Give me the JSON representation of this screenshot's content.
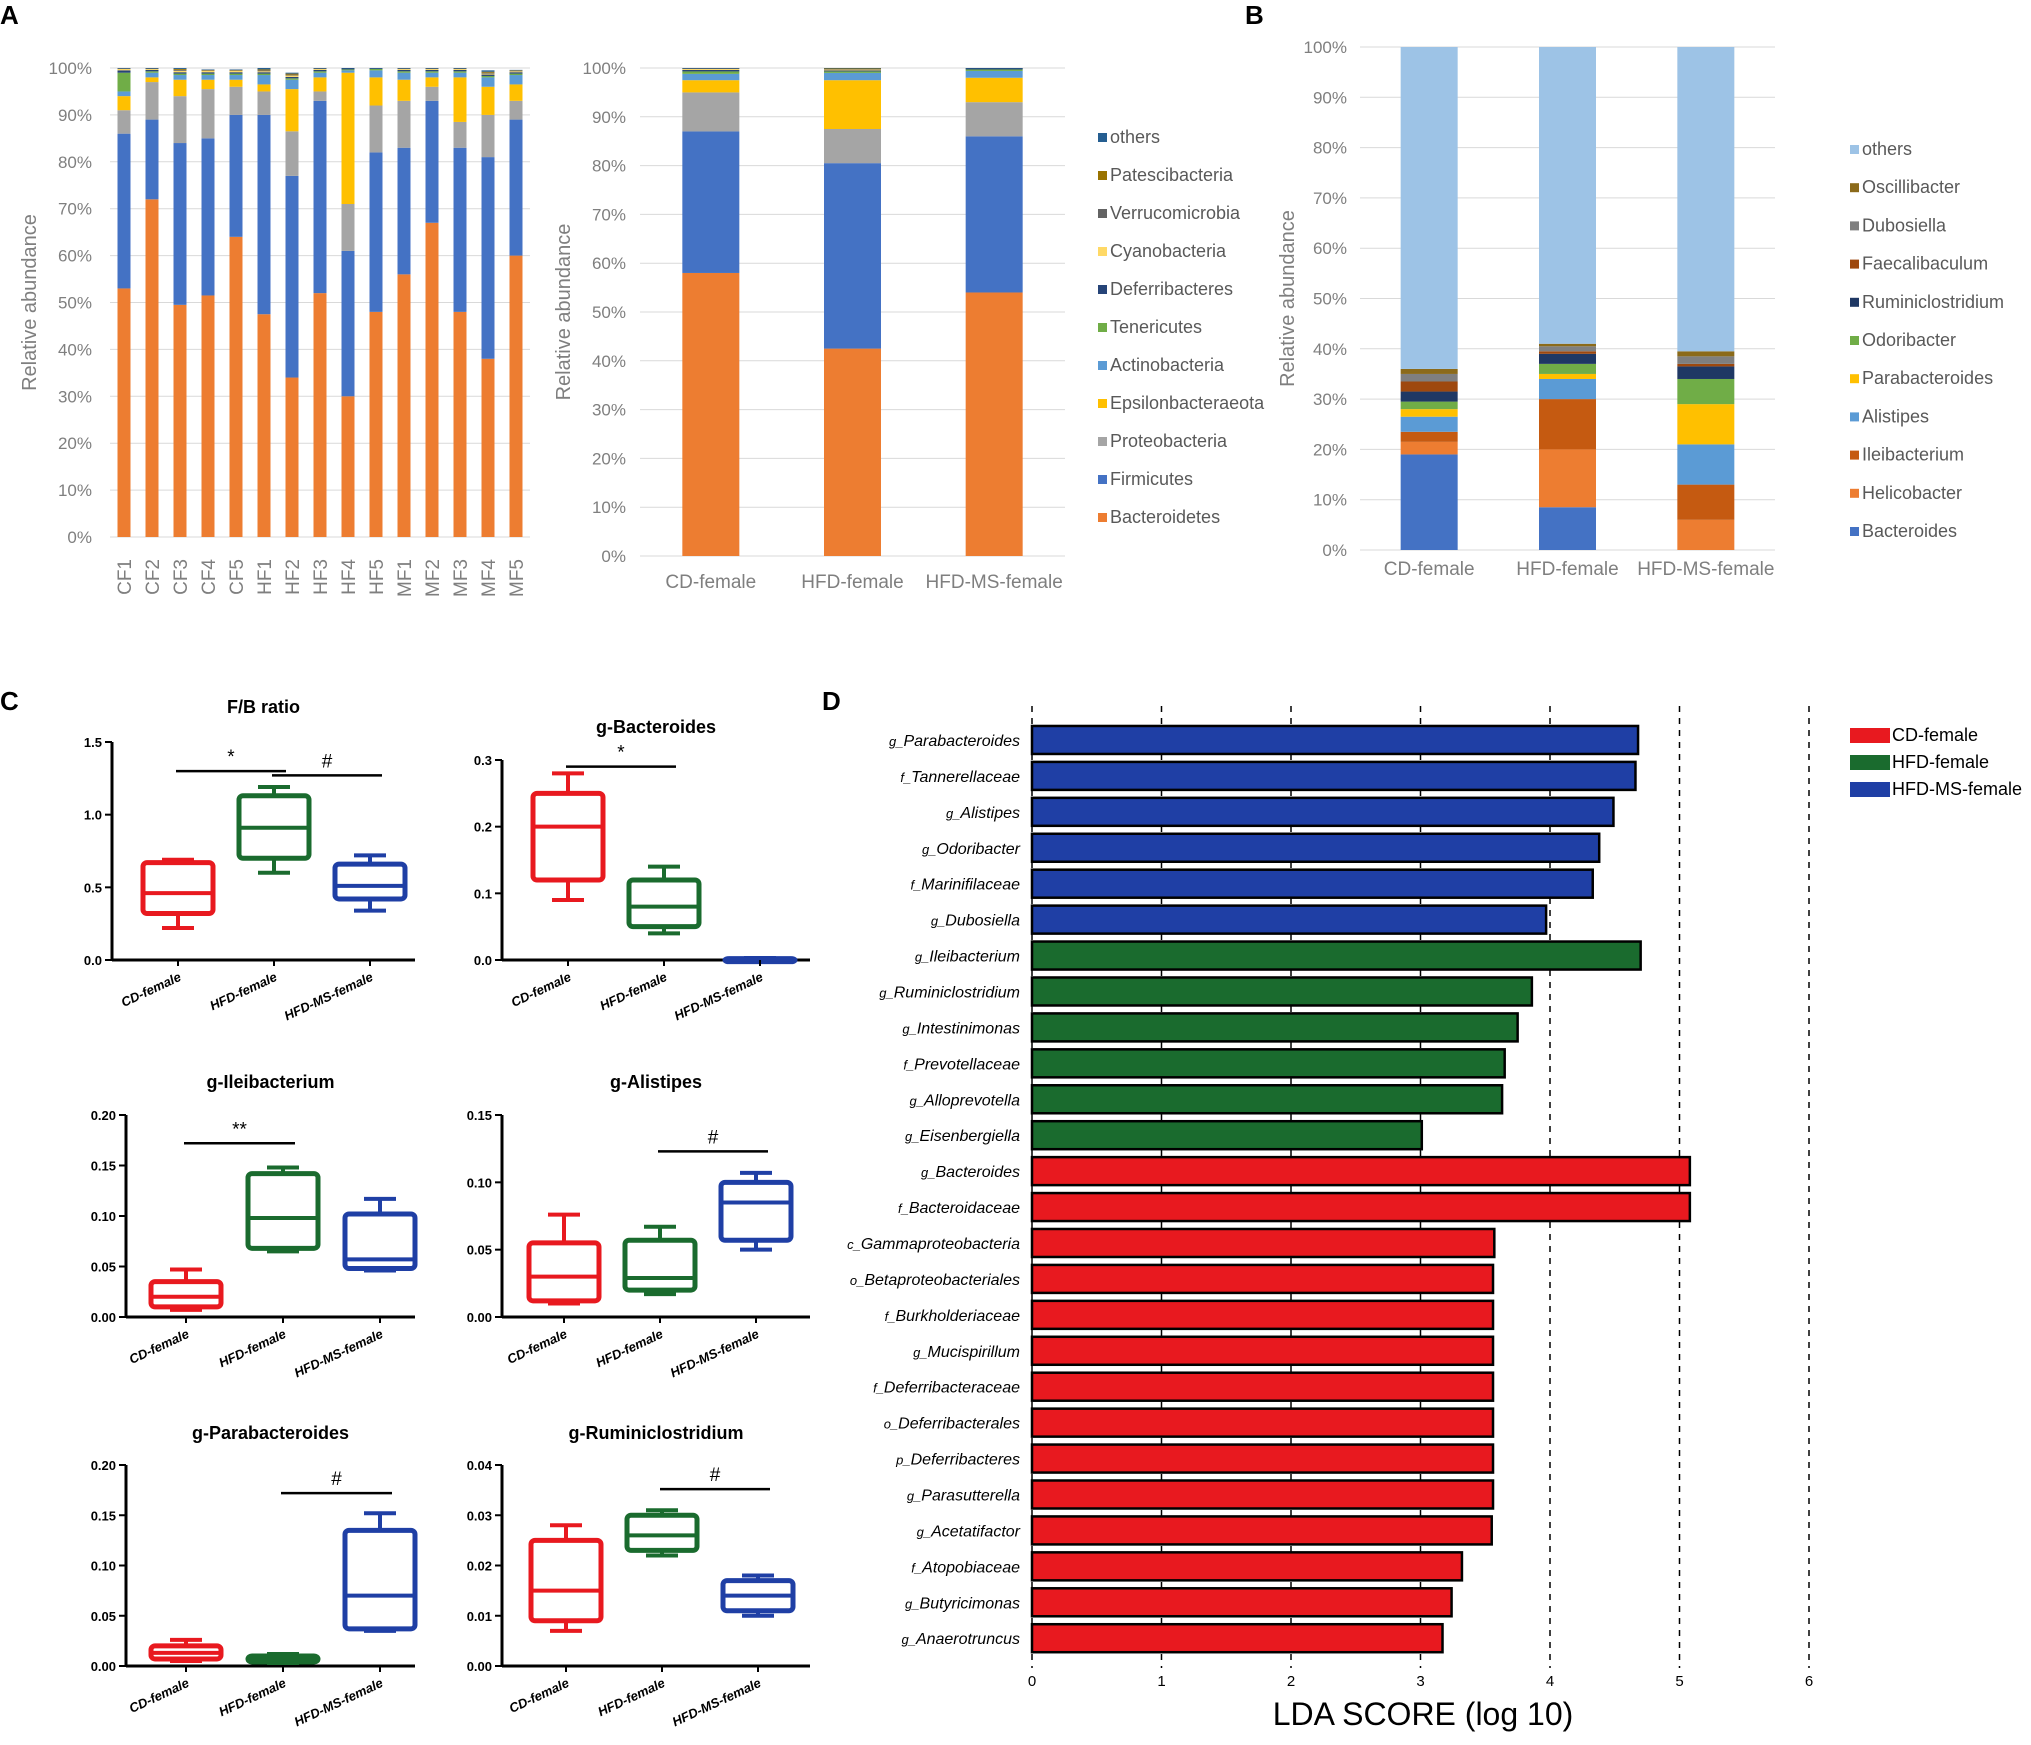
{
  "panels": {
    "A": "A",
    "B": "B",
    "C": "C",
    "D": "D"
  },
  "phylum_taxa": [
    "Bacteroidetes",
    "Firmicutes",
    "Proteobacteria",
    "Epsilonbacteraeota",
    "Actinobacteria",
    "Tenericutes",
    "Deferribacteres",
    "Cyanobacteria",
    "Verrucomicrobia",
    "Patescibacteria",
    "others"
  ],
  "phylum_colors": [
    "#ED7D31",
    "#4472C4",
    "#A5A5A5",
    "#FFC000",
    "#5B9BD5",
    "#70AD47",
    "#264478",
    "#FFD966",
    "#636363",
    "#997300",
    "#255E91"
  ],
  "genus_taxa": [
    "Bacteroides",
    "Helicobacter",
    "Ileibacterium",
    "Alistipes",
    "Parabacteroides",
    "Odoribacter",
    "Ruminiclostridium",
    "Faecalibaculum",
    "Dubosiella",
    "Oscillibacter",
    "others"
  ],
  "genus_colors": [
    "#4472C4",
    "#ED7D31",
    "#C55A11",
    "#5B9BD5",
    "#FFC000",
    "#70AD47",
    "#1F3864",
    "#9E480E",
    "#7F7F7F",
    "#8B6A1A",
    "#9DC3E6"
  ],
  "chart_data": [
    {
      "id": "A-left",
      "type": "bar",
      "stacked": true,
      "title": "",
      "ylabel": "Relative abundance",
      "ylim": [
        0,
        100
      ],
      "yticks": [
        "0%",
        "10%",
        "20%",
        "30%",
        "40%",
        "50%",
        "60%",
        "70%",
        "80%",
        "90%",
        "100%"
      ],
      "categories": [
        "CF1",
        "CF2",
        "CF3",
        "CF4",
        "CF5",
        "HF1",
        "HF2",
        "HF3",
        "HF4",
        "HF5",
        "MF1",
        "MF2",
        "MF3",
        "MF4",
        "MF5"
      ],
      "series_values": [
        [
          53,
          72,
          49.5,
          51.5,
          64,
          47.5,
          34,
          52,
          30,
          48,
          56,
          67,
          48,
          38,
          60
        ],
        [
          33,
          17,
          34.5,
          33.5,
          26,
          42.5,
          43,
          41,
          31,
          34,
          27,
          26,
          35,
          43,
          29
        ],
        [
          5,
          8,
          10,
          10.5,
          6,
          5,
          9.5,
          2,
          10,
          10,
          10,
          3,
          5.5,
          9,
          4
        ],
        [
          3,
          1,
          3.5,
          2,
          1.5,
          1.5,
          9,
          3,
          28,
          6,
          4.5,
          2,
          9.5,
          6,
          3.5
        ],
        [
          1,
          1,
          1,
          1,
          1,
          2,
          2,
          1,
          0.5,
          1.5,
          1.5,
          1,
          1,
          2,
          2
        ],
        [
          4,
          0.3,
          0.3,
          0.3,
          0.3,
          0.3,
          0.3,
          0.3,
          0.2,
          0.3,
          0.3,
          0.3,
          0.3,
          0.3,
          0.3
        ],
        [
          0.5,
          0.3,
          0.3,
          0.3,
          0.3,
          0.3,
          0.3,
          0.3,
          0.2,
          0.2,
          0.3,
          0.3,
          0.3,
          0.3,
          0.3
        ],
        [
          0.3,
          0.2,
          0.3,
          0.3,
          0.3,
          0.2,
          0.3,
          0.2,
          0.2,
          0.2,
          0.2,
          0.2,
          0.2,
          0.2,
          0.2
        ],
        [
          0.2,
          0.1,
          0.2,
          0.1,
          0.1,
          0.2,
          0.2,
          0.1,
          0.1,
          0.2,
          0.1,
          0.1,
          0.1,
          0.2,
          0.1
        ],
        [
          0.3,
          0.1,
          0.2,
          0.1,
          0.1,
          0.2,
          0.2,
          0.1,
          0.1,
          0.2,
          0.1,
          0.1,
          0.1,
          0.2,
          0.1
        ],
        [
          0.2,
          0.1,
          0.2,
          0.1,
          0.1,
          0.3,
          0.2,
          0.1,
          0.1,
          0.2,
          0.1,
          0.1,
          0.1,
          0.3,
          0.1
        ]
      ]
    },
    {
      "id": "A-right",
      "type": "bar",
      "stacked": true,
      "title": "",
      "ylabel": "Relative abundance",
      "ylim": [
        0,
        100
      ],
      "yticks": [
        "0%",
        "10%",
        "20%",
        "30%",
        "40%",
        "50%",
        "60%",
        "70%",
        "80%",
        "90%",
        "100%"
      ],
      "categories": [
        "CD-female",
        "HFD-female",
        "HFD-MS-female"
      ],
      "series_values": [
        [
          58,
          42.5,
          54
        ],
        [
          29,
          38,
          32
        ],
        [
          8,
          7,
          7
        ],
        [
          2.5,
          10,
          5
        ],
        [
          1.3,
          1.5,
          1.4
        ],
        [
          0.5,
          0.3,
          0.3
        ],
        [
          0.3,
          0.2,
          0.2
        ],
        [
          0.2,
          0.2,
          0.1
        ],
        [
          0.1,
          0.1,
          0.1
        ],
        [
          0.1,
          0.1,
          0.1
        ],
        [
          0.2,
          0.2,
          0.1
        ]
      ],
      "legend_position": "right"
    },
    {
      "id": "B",
      "type": "bar",
      "stacked": true,
      "title": "",
      "ylabel": "Relative abundance",
      "ylim": [
        0,
        100
      ],
      "yticks": [
        "0%",
        "10%",
        "20%",
        "30%",
        "40%",
        "50%",
        "60%",
        "70%",
        "80%",
        "90%",
        "100%"
      ],
      "categories": [
        "CD-female",
        "HFD-female",
        "HFD-MS-female"
      ],
      "series_values": [
        [
          19,
          8.5,
          0
        ],
        [
          2.5,
          11.5,
          6
        ],
        [
          2,
          10,
          7
        ],
        [
          3,
          4,
          8
        ],
        [
          1.5,
          1,
          8
        ],
        [
          1.5,
          2,
          5
        ],
        [
          2,
          2,
          2.5
        ],
        [
          2,
          0.5,
          0.5
        ],
        [
          1.5,
          1,
          1.5
        ],
        [
          1,
          0.5,
          1
        ],
        [
          64,
          59,
          60.5
        ]
      ],
      "legend_position": "right"
    },
    {
      "id": "C-FB",
      "type": "box",
      "title": "F/B ratio",
      "categories": [
        "CD-female",
        "HFD-female",
        "HFD-MS-female"
      ],
      "ylim": [
        0,
        1.5
      ],
      "yticks": [
        "0.0",
        "0.5",
        "1.0",
        "1.5"
      ],
      "boxes": [
        {
          "min": 0.22,
          "q1": 0.32,
          "median": 0.46,
          "q3": 0.67,
          "max": 0.69
        },
        {
          "min": 0.6,
          "q1": 0.7,
          "median": 0.91,
          "q3": 1.13,
          "max": 1.19
        },
        {
          "min": 0.34,
          "q1": 0.42,
          "median": 0.51,
          "q3": 0.66,
          "max": 0.72
        }
      ],
      "brackets": [
        {
          "from": 0,
          "to": 1,
          "label": "*",
          "y": 1.3
        },
        {
          "from": 1,
          "to": 2,
          "label": "#",
          "y": 1.27
        }
      ]
    },
    {
      "id": "C-Bacteroides",
      "type": "box",
      "title": "g-Bacteroides",
      "categories": [
        "CD-female",
        "HFD-female",
        "HFD-MS-female"
      ],
      "ylim": [
        0,
        0.3
      ],
      "yticks": [
        "0.0",
        "0.1",
        "0.2",
        "0.3"
      ],
      "boxes": [
        {
          "min": 0.09,
          "q1": 0.12,
          "median": 0.2,
          "q3": 0.25,
          "max": 0.28
        },
        {
          "min": 0.04,
          "q1": 0.05,
          "median": 0.08,
          "q3": 0.12,
          "max": 0.14
        },
        {
          "min": 0.0,
          "q1": 0.0,
          "median": 0.001,
          "q3": 0.002,
          "max": 0.003
        }
      ],
      "brackets": [
        {
          "from": 0,
          "to": 1,
          "label": "*",
          "y": 0.29
        }
      ]
    },
    {
      "id": "C-Ileibacterium",
      "type": "box",
      "title": "g-Ileibacterium",
      "categories": [
        "CD-female",
        "HFD-female",
        "HFD-MS-female"
      ],
      "ylim": [
        0,
        0.2
      ],
      "yticks": [
        "0.00",
        "0.05",
        "0.10",
        "0.15",
        "0.20"
      ],
      "boxes": [
        {
          "min": 0.007,
          "q1": 0.01,
          "median": 0.02,
          "q3": 0.035,
          "max": 0.047
        },
        {
          "min": 0.065,
          "q1": 0.068,
          "median": 0.098,
          "q3": 0.142,
          "max": 0.148
        },
        {
          "min": 0.046,
          "q1": 0.048,
          "median": 0.057,
          "q3": 0.102,
          "max": 0.117
        }
      ],
      "brackets": [
        {
          "from": 0,
          "to": 1,
          "label": "**",
          "y": 0.172
        }
      ]
    },
    {
      "id": "C-Alistipes",
      "type": "box",
      "title": "g-Alistipes",
      "categories": [
        "CD-female",
        "HFD-female",
        "HFD-MS-female"
      ],
      "ylim": [
        0,
        0.15
      ],
      "yticks": [
        "0.00",
        "0.05",
        "0.10",
        "0.15"
      ],
      "boxes": [
        {
          "min": 0.01,
          "q1": 0.012,
          "median": 0.03,
          "q3": 0.055,
          "max": 0.076
        },
        {
          "min": 0.017,
          "q1": 0.02,
          "median": 0.029,
          "q3": 0.057,
          "max": 0.067
        },
        {
          "min": 0.05,
          "q1": 0.057,
          "median": 0.085,
          "q3": 0.1,
          "max": 0.107
        }
      ],
      "brackets": [
        {
          "from": 1,
          "to": 2,
          "label": "#",
          "y": 0.123
        }
      ]
    },
    {
      "id": "C-Parabacteroides",
      "type": "box",
      "title": "g-Parabacteroides",
      "categories": [
        "CD-female",
        "HFD-female",
        "HFD-MS-female"
      ],
      "ylim": [
        0,
        0.2
      ],
      "yticks": [
        "0.00",
        "0.05",
        "0.10",
        "0.15",
        "0.20"
      ],
      "boxes": [
        {
          "min": 0.005,
          "q1": 0.007,
          "median": 0.013,
          "q3": 0.02,
          "max": 0.026
        },
        {
          "min": 0.003,
          "q1": 0.004,
          "median": 0.007,
          "q3": 0.01,
          "max": 0.012
        },
        {
          "min": 0.035,
          "q1": 0.037,
          "median": 0.07,
          "q3": 0.135,
          "max": 0.152
        }
      ],
      "brackets": [
        {
          "from": 1,
          "to": 2,
          "label": "#",
          "y": 0.172
        }
      ]
    },
    {
      "id": "C-Ruminiclostridium",
      "type": "box",
      "title": "g-Ruminiclostridium",
      "categories": [
        "CD-female",
        "HFD-female",
        "HFD-MS-female"
      ],
      "ylim": [
        0,
        0.04
      ],
      "yticks": [
        "0.00",
        "0.01",
        "0.02",
        "0.03",
        "0.04"
      ],
      "boxes": [
        {
          "min": 0.007,
          "q1": 0.009,
          "median": 0.015,
          "q3": 0.025,
          "max": 0.028
        },
        {
          "min": 0.022,
          "q1": 0.023,
          "median": 0.026,
          "q3": 0.03,
          "max": 0.031
        },
        {
          "min": 0.01,
          "q1": 0.011,
          "median": 0.014,
          "q3": 0.017,
          "max": 0.018
        }
      ],
      "brackets": [
        {
          "from": 1,
          "to": 2,
          "label": "#",
          "y": 0.0352
        }
      ]
    },
    {
      "id": "D",
      "type": "bar",
      "orientation": "horizontal",
      "xlabel": "LDA SCORE (log 10)",
      "xlim": [
        0,
        6
      ],
      "xticks": [
        "0",
        "1",
        "2",
        "3",
        "4",
        "5",
        "6"
      ],
      "groups": [
        "CD-female",
        "HFD-female",
        "HFD-MS-female"
      ],
      "group_colors": [
        "#E8191F",
        "#1A6B2E",
        "#1F3FA5"
      ],
      "features": [
        {
          "prefix": "g_",
          "name": "Parabacteroides",
          "group": 2,
          "score": 4.68
        },
        {
          "prefix": "f_",
          "name": "Tannerellaceae",
          "group": 2,
          "score": 4.66
        },
        {
          "prefix": "g_",
          "name": "Alistipes",
          "group": 2,
          "score": 4.49
        },
        {
          "prefix": "g_",
          "name": "Odoribacter",
          "group": 2,
          "score": 4.38
        },
        {
          "prefix": "f_",
          "name": "Marinifilaceae",
          "group": 2,
          "score": 4.33
        },
        {
          "prefix": "g_",
          "name": "Dubosiella",
          "group": 2,
          "score": 3.97
        },
        {
          "prefix": "g_",
          "name": "Ileibacterium",
          "group": 1,
          "score": 4.7
        },
        {
          "prefix": "g_",
          "name": "Ruminiclostridium",
          "group": 1,
          "score": 3.86
        },
        {
          "prefix": "g_",
          "name": "Intestinimonas",
          "group": 1,
          "score": 3.75
        },
        {
          "prefix": "f_",
          "name": "Prevotellaceae",
          "group": 1,
          "score": 3.65
        },
        {
          "prefix": "g_",
          "name": "Alloprevotella",
          "group": 1,
          "score": 3.63
        },
        {
          "prefix": "g_",
          "name": "Eisenbergiella",
          "group": 1,
          "score": 3.01
        },
        {
          "prefix": "g_",
          "name": "Bacteroides",
          "group": 0,
          "score": 5.08
        },
        {
          "prefix": "f_",
          "name": "Bacteroidaceae",
          "group": 0,
          "score": 5.08
        },
        {
          "prefix": "c_",
          "name": "Gammaproteobacteria",
          "group": 0,
          "score": 3.57
        },
        {
          "prefix": "o_",
          "name": "Betaproteobacteriales",
          "group": 0,
          "score": 3.56
        },
        {
          "prefix": "f_",
          "name": "Burkholderiaceae",
          "group": 0,
          "score": 3.56
        },
        {
          "prefix": "g_",
          "name": "Mucispirillum",
          "group": 0,
          "score": 3.56
        },
        {
          "prefix": "f_",
          "name": "Deferribacteraceae",
          "group": 0,
          "score": 3.56
        },
        {
          "prefix": "o_",
          "name": "Deferribacterales",
          "group": 0,
          "score": 3.56
        },
        {
          "prefix": "p_",
          "name": "Deferribacteres",
          "group": 0,
          "score": 3.56
        },
        {
          "prefix": "g_",
          "name": "Parasutterella",
          "group": 0,
          "score": 3.56
        },
        {
          "prefix": "g_",
          "name": "Acetatifactor",
          "group": 0,
          "score": 3.55
        },
        {
          "prefix": "f_",
          "name": "Atopobiaceae",
          "group": 0,
          "score": 3.32
        },
        {
          "prefix": "g_",
          "name": "Butyricimonas",
          "group": 0,
          "score": 3.24
        },
        {
          "prefix": "g_",
          "name": "Anaerotruncus",
          "group": 0,
          "score": 3.17
        }
      ]
    }
  ]
}
